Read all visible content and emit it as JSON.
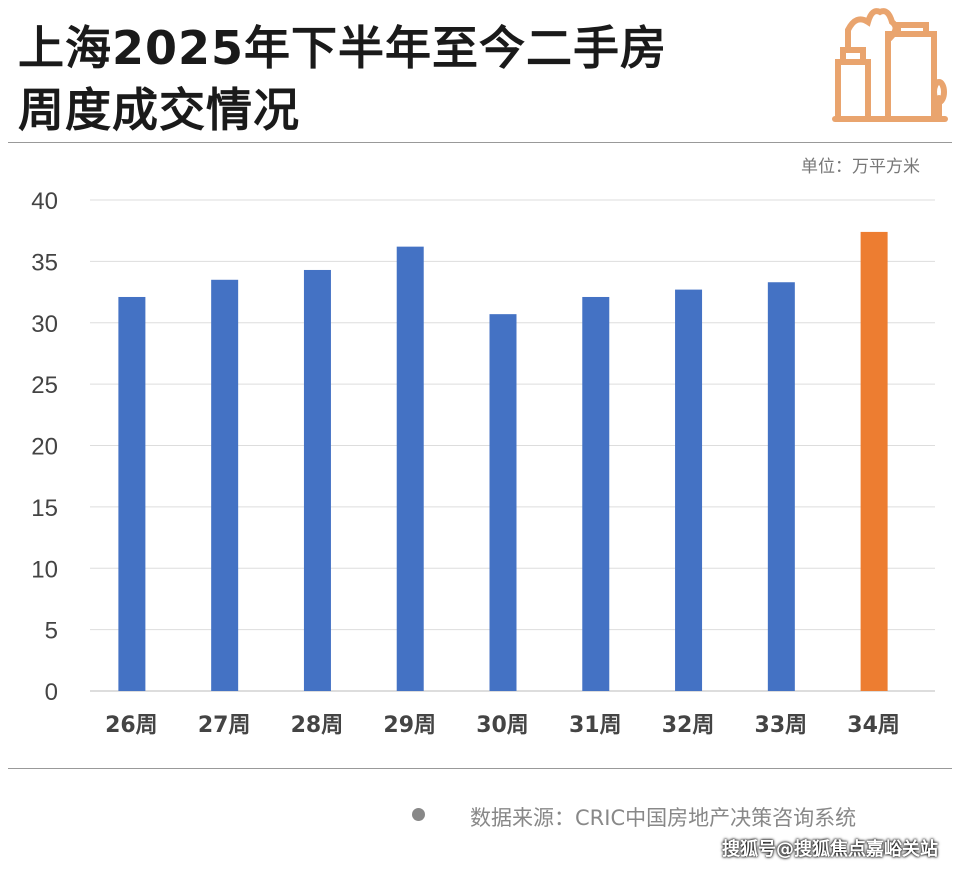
{
  "header": {
    "title_line1": "上海2025年下半年至今二手房",
    "title_line2": "周度成交情况",
    "icon": "city-buildings-icon"
  },
  "unit_label": "单位：万平方米",
  "source": "数据来源：CRIC中国房地产决策咨询系统",
  "watermark": "搜狐号@搜狐焦点嘉峪关站",
  "colors": {
    "bar": "#4472C4",
    "highlight": "#ED7D31",
    "icon": "#E9A46E"
  },
  "chart_data": {
    "type": "bar",
    "categories": [
      "26周",
      "27周",
      "28周",
      "29周",
      "30周",
      "31周",
      "32周",
      "33周",
      "34周"
    ],
    "values": [
      32.1,
      33.5,
      34.3,
      36.2,
      30.7,
      32.1,
      32.7,
      33.3,
      37.4
    ],
    "highlight_index": 8,
    "ylim": [
      0,
      40
    ],
    "yticks": [
      0,
      5,
      10,
      15,
      20,
      25,
      30,
      35,
      40
    ],
    "grid": true,
    "title": "",
    "xlabel": "",
    "ylabel": ""
  }
}
